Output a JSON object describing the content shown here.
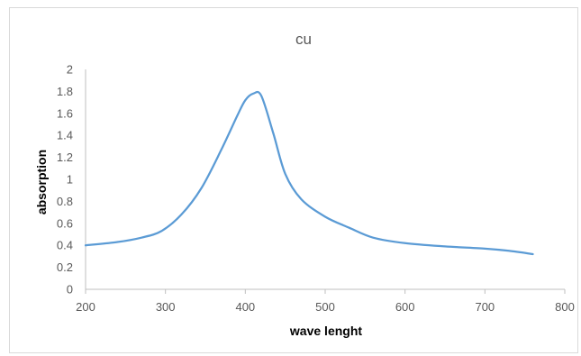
{
  "chart_data": {
    "type": "line",
    "title": "cu",
    "xlabel": "wave lenght",
    "ylabel": "absorption",
    "xlim": [
      200,
      800
    ],
    "ylim": [
      0,
      2
    ],
    "xticks": [
      "200",
      "300",
      "400",
      "500",
      "600",
      "700",
      "800"
    ],
    "yticks": [
      "0",
      "0.2",
      "0.4",
      "0.6",
      "0.8",
      "1",
      "1.2",
      "1.4",
      "1.6",
      "1.8",
      "2"
    ],
    "grid": false,
    "legend": "none",
    "series": [
      {
        "color": "#5b9bd5",
        "x": [
          200,
          240,
          270,
          295,
          320,
          345,
          370,
          390,
          400,
          410,
          420,
          435,
          450,
          470,
          500,
          530,
          560,
          600,
          650,
          700,
          730,
          760
        ],
        "y": [
          0.4,
          0.43,
          0.47,
          0.53,
          0.68,
          0.92,
          1.27,
          1.58,
          1.72,
          1.78,
          1.76,
          1.42,
          1.05,
          0.82,
          0.66,
          0.56,
          0.47,
          0.42,
          0.39,
          0.37,
          0.35,
          0.32
        ]
      }
    ]
  }
}
